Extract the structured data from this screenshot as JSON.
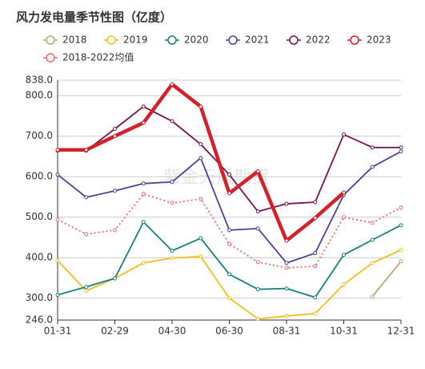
{
  "chart_data": {
    "type": "line",
    "title": "风力发电量季节性图（亿度）",
    "watermark": "紫金天风期货",
    "categories": [
      "01-31",
      null,
      "02-29",
      null,
      "04-30",
      null,
      "06-30",
      null,
      "08-31",
      null,
      "10-31",
      null,
      "12-31"
    ],
    "ylim": [
      246,
      838
    ],
    "yticks": [
      {
        "value": 246,
        "label": "246.0"
      },
      {
        "value": 300,
        "label": "300.0"
      },
      {
        "value": 400,
        "label": "400.0"
      },
      {
        "value": 500,
        "label": "500.0"
      },
      {
        "value": 600,
        "label": "600.0"
      },
      {
        "value": 700,
        "label": "700.0"
      },
      {
        "value": 800,
        "label": "800.0"
      },
      {
        "value": 838,
        "label": "838.0"
      }
    ],
    "grid": true,
    "series": [
      {
        "name": "2018",
        "color": "#b8a874",
        "values": [
          null,
          null,
          null,
          null,
          null,
          null,
          null,
          null,
          null,
          null,
          null,
          304,
          391
        ]
      },
      {
        "name": "2019",
        "color": "#f2c01c",
        "values": [
          393,
          318,
          349,
          387,
          399,
          403,
          300,
          249,
          256,
          262,
          334,
          387,
          419
        ]
      },
      {
        "name": "2020",
        "color": "#13817f",
        "values": [
          308,
          328,
          349,
          488,
          417,
          448,
          359,
          322,
          324,
          302,
          407,
          444,
          480
        ]
      },
      {
        "name": "2021",
        "color": "#4f3f96",
        "values": [
          605,
          549,
          565,
          583,
          587,
          646,
          468,
          472,
          387,
          411,
          555,
          624,
          662
        ]
      },
      {
        "name": "2022",
        "color": "#7a1256",
        "values": [
          664,
          664,
          718,
          773,
          737,
          680,
          605,
          514,
          533,
          537,
          704,
          672,
          672
        ]
      },
      {
        "name": "2023",
        "color": "#d42029",
        "values": [
          666,
          666,
          700,
          733,
          828,
          773,
          559,
          613,
          442,
          498,
          561,
          null,
          null
        ]
      },
      {
        "name": "2018-2022均值",
        "color": "#ef6b6b",
        "dashed": true,
        "values": [
          494,
          458,
          468,
          557,
          535,
          545,
          434,
          389,
          375,
          379,
          500,
          486,
          524
        ]
      }
    ]
  }
}
